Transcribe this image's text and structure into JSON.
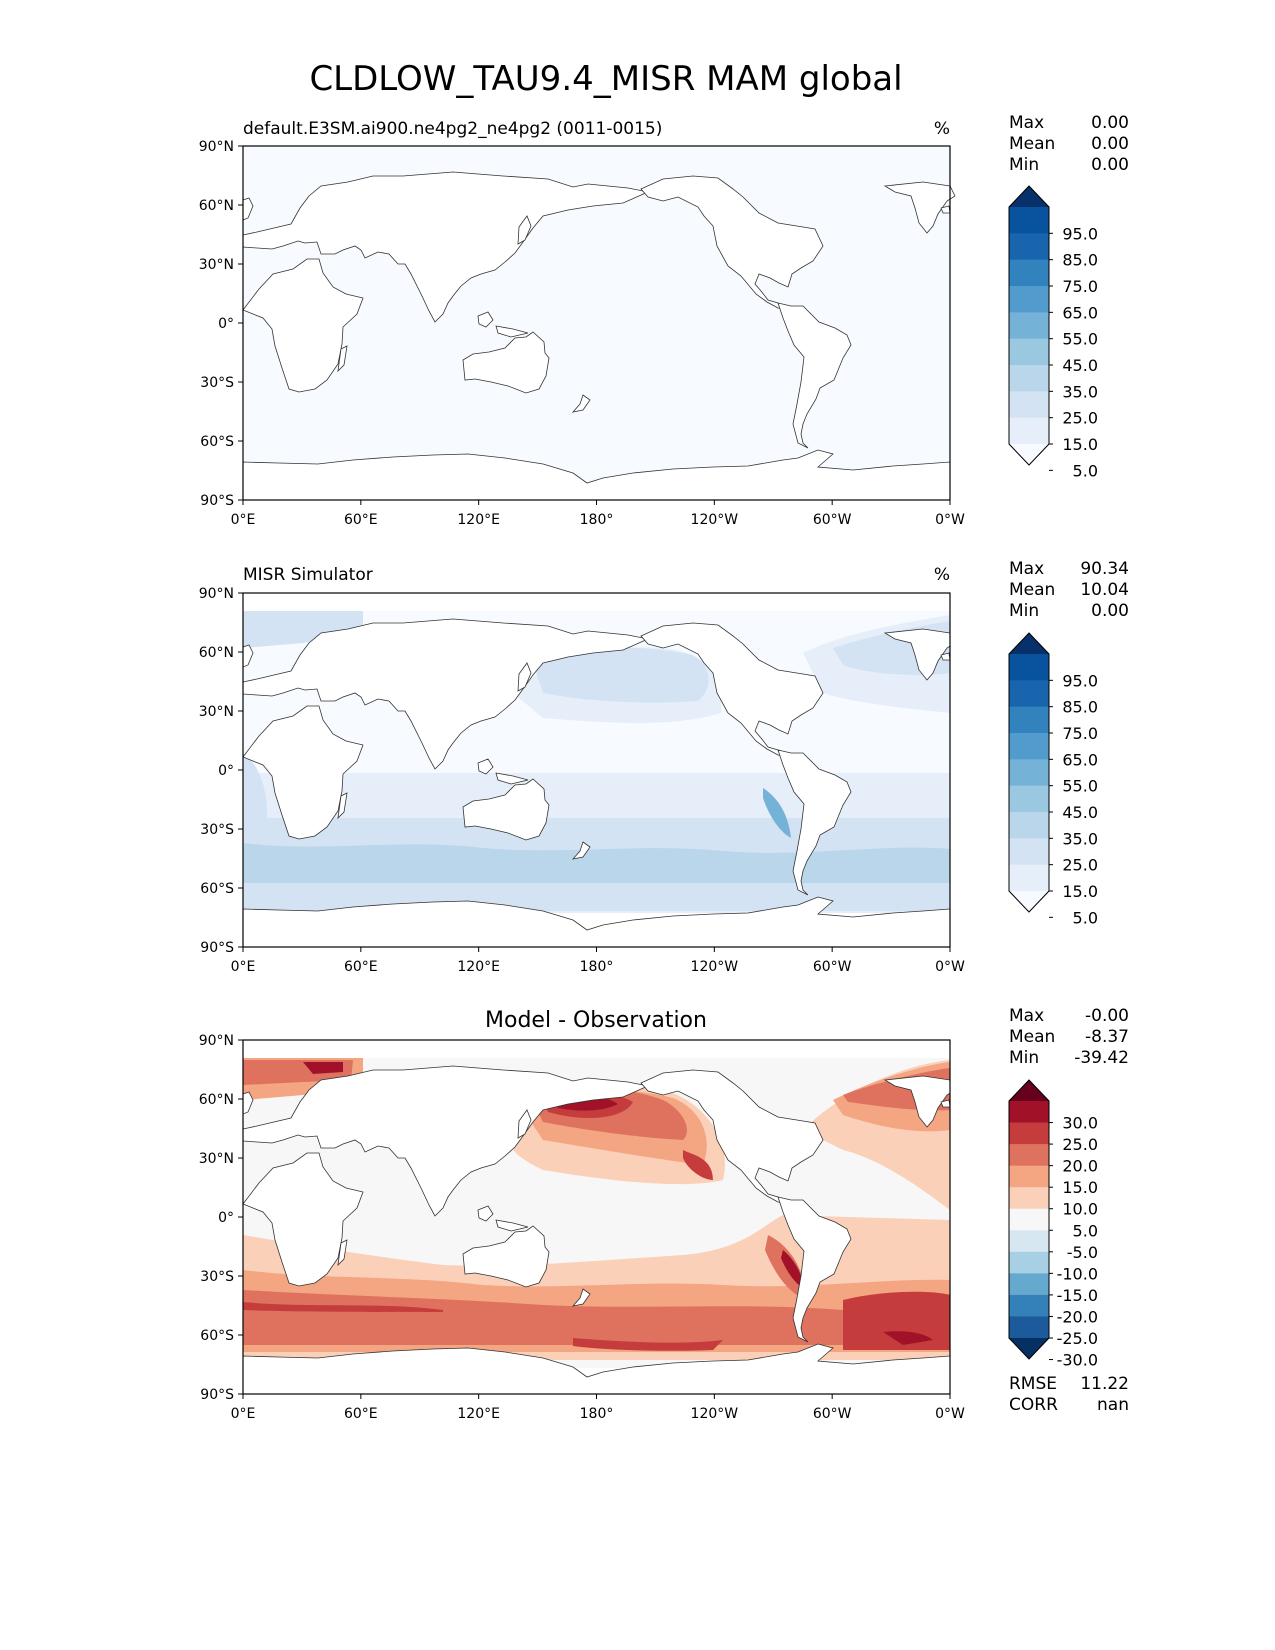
{
  "figure": {
    "title": "CLDLOW_TAU9.4_MISR MAM global"
  },
  "axes": {
    "lat_labels": [
      "90°N",
      "60°N",
      "30°N",
      "0°",
      "30°S",
      "60°S",
      "90°S"
    ],
    "lon_labels": [
      "0°E",
      "60°E",
      "120°E",
      "180°",
      "120°W",
      "60°W",
      "0°W"
    ]
  },
  "panels": [
    {
      "title_left": "default.E3SM.ai900.ne4pg2_ne4pg2 (0011-0015)",
      "units": "%",
      "stats": [
        {
          "label": "Max",
          "value": "0.00"
        },
        {
          "label": "Mean",
          "value": "0.00"
        },
        {
          "label": "Min",
          "value": "0.00"
        }
      ],
      "colorbar_labels": [
        "95.0",
        "85.0",
        "75.0",
        "65.0",
        "55.0",
        "45.0",
        "35.0",
        "25.0",
        "15.0",
        "5.0"
      ]
    },
    {
      "title_left": "MISR Simulator",
      "units": "%",
      "stats": [
        {
          "label": "Max",
          "value": "90.34"
        },
        {
          "label": "Mean",
          "value": "10.04"
        },
        {
          "label": "Min",
          "value": "0.00"
        }
      ],
      "colorbar_labels": [
        "95.0",
        "85.0",
        "75.0",
        "65.0",
        "55.0",
        "45.0",
        "35.0",
        "25.0",
        "15.0",
        "5.0"
      ]
    },
    {
      "title_center": "Model - Observation",
      "stats": [
        {
          "label": "Max",
          "value": "-0.00"
        },
        {
          "label": "Mean",
          "value": "-8.37"
        },
        {
          "label": "Min",
          "value": "-39.42"
        }
      ],
      "colorbar_labels": [
        "30.0",
        "25.0",
        "20.0",
        "15.0",
        "10.0",
        "5.0",
        "-5.0",
        "-10.0",
        "-15.0",
        "-20.0",
        "-25.0",
        "-30.0"
      ],
      "metrics": [
        {
          "label": "RMSE",
          "value": "11.22"
        },
        {
          "label": "CORR",
          "value": "nan"
        }
      ]
    }
  ],
  "colors": {
    "blues": [
      "#f7fbff",
      "#e6eff9",
      "#d3e3f3",
      "#bad6eb",
      "#9ac8e0",
      "#74b2d8",
      "#519ccc",
      "#3282be",
      "#1965ad",
      "#09529d",
      "#08306b"
    ],
    "diverging": [
      "#67001f",
      "#a11228",
      "#c43c3c",
      "#de725e",
      "#f4a582",
      "#fbd0b9",
      "#f7f7f7",
      "#d6e7f1",
      "#a7d0e4",
      "#66a9cf",
      "#3480b9",
      "#1b5a9b",
      "#053061"
    ]
  }
}
